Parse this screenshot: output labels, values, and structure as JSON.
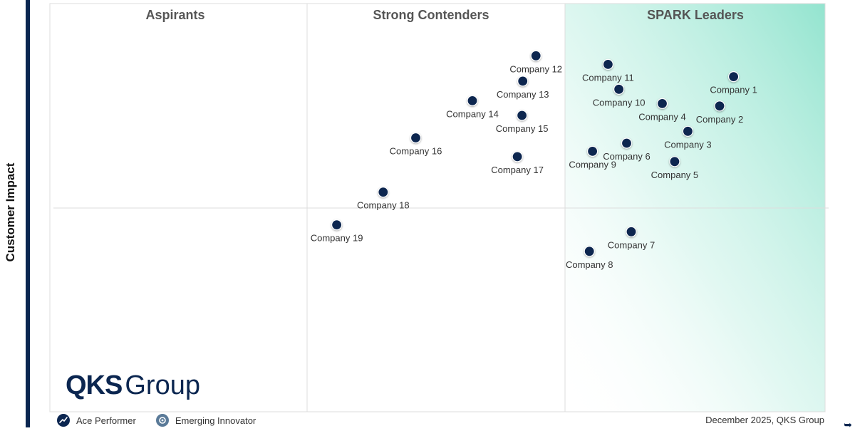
{
  "chart_data": {
    "type": "scatter",
    "title": "",
    "ylabel": "Customer Impact",
    "xlabel": "",
    "xlim": [
      0,
      100
    ],
    "ylim": [
      0,
      100
    ],
    "grid": true,
    "quadrants": [
      "Aspirants",
      "Strong Contenders",
      "SPARK Leaders"
    ],
    "points": [
      {
        "name": "Company 1",
        "x": 88.2,
        "y": 82.1
      },
      {
        "name": "Company 2",
        "x": 86.4,
        "y": 74.9
      },
      {
        "name": "Company 3",
        "x": 82.3,
        "y": 68.7
      },
      {
        "name": "Company 4",
        "x": 79.0,
        "y": 75.5
      },
      {
        "name": "Company 5",
        "x": 80.6,
        "y": 61.3
      },
      {
        "name": "Company 6",
        "x": 74.4,
        "y": 65.8
      },
      {
        "name": "Company 7",
        "x": 75.0,
        "y": 44.1
      },
      {
        "name": "Company 8",
        "x": 69.6,
        "y": 39.3
      },
      {
        "name": "Company 9",
        "x": 70.0,
        "y": 63.8
      },
      {
        "name": "Company 10",
        "x": 73.4,
        "y": 79.0
      },
      {
        "name": "Company 11",
        "x": 72.0,
        "y": 85.1
      },
      {
        "name": "Company 12",
        "x": 62.7,
        "y": 87.2
      },
      {
        "name": "Company 13",
        "x": 61.0,
        "y": 81.0
      },
      {
        "name": "Company 14",
        "x": 54.5,
        "y": 76.2
      },
      {
        "name": "Company 15",
        "x": 60.9,
        "y": 72.6
      },
      {
        "name": "Company 16",
        "x": 47.2,
        "y": 67.1
      },
      {
        "name": "Company 17",
        "x": 60.3,
        "y": 62.5
      },
      {
        "name": "Company 18",
        "x": 43.0,
        "y": 53.8
      },
      {
        "name": "Company 19",
        "x": 37.0,
        "y": 45.8
      }
    ]
  },
  "branding": {
    "logo_bold": "QKS",
    "logo_regular": "Group"
  },
  "legend": {
    "ace_performer": "Ace Performer",
    "emerging_innovator": "Emerging Innovator"
  },
  "footer": {
    "credit": "December 2025, QKS Group"
  },
  "colors": {
    "point": "#0b2650",
    "accent_gradient": "#93e4cf",
    "frame": "#0b2650"
  }
}
